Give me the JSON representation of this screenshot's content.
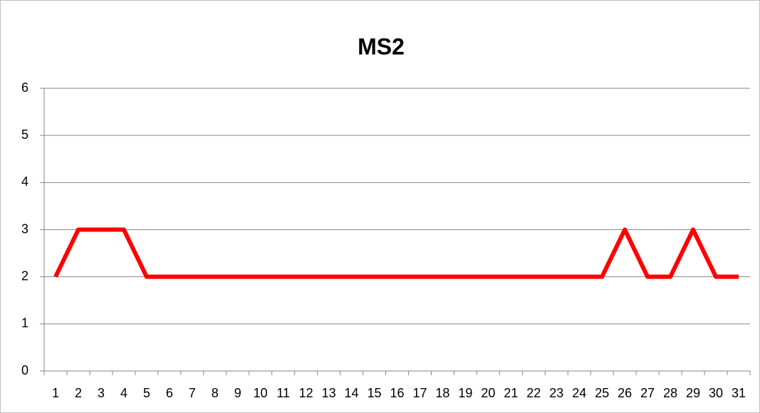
{
  "chart_data": {
    "type": "line",
    "title": "MS2",
    "categories": [
      "1",
      "2",
      "3",
      "4",
      "5",
      "6",
      "7",
      "8",
      "9",
      "10",
      "11",
      "12",
      "13",
      "14",
      "15",
      "16",
      "17",
      "18",
      "19",
      "20",
      "21",
      "22",
      "23",
      "24",
      "25",
      "26",
      "27",
      "28",
      "29",
      "30",
      "31"
    ],
    "series": [
      {
        "name": "MS2",
        "color": "#ff0000",
        "values": [
          2,
          3,
          3,
          3,
          2,
          2,
          2,
          2,
          2,
          2,
          2,
          2,
          2,
          2,
          2,
          2,
          2,
          2,
          2,
          2,
          2,
          2,
          2,
          2,
          2,
          3,
          2,
          2,
          3,
          2,
          2
        ]
      }
    ],
    "ylim": [
      0,
      6
    ],
    "yticks": [
      0,
      1,
      2,
      3,
      4,
      5,
      6
    ],
    "grid": true,
    "legend": false
  }
}
